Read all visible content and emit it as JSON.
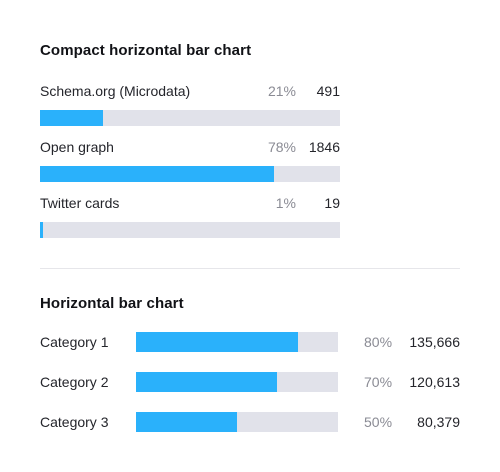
{
  "chart_data": [
    {
      "type": "bar",
      "orientation": "horizontal",
      "title": "Compact horizontal bar chart",
      "categories": [
        "Schema.org (Microdata)",
        "Open graph",
        "Twitter cards"
      ],
      "values": [
        491,
        1846,
        19
      ],
      "percents": [
        "21%",
        "78%",
        "1%"
      ],
      "value_labels": [
        "491",
        "1846",
        "19"
      ],
      "fractions": [
        0.21,
        0.78,
        0.01
      ],
      "bar_color": "#2ab1fb",
      "track_color": "#e1e2ea"
    },
    {
      "type": "bar",
      "orientation": "horizontal",
      "title": "Horizontal bar chart",
      "categories": [
        "Category 1",
        "Category 2",
        "Category 3"
      ],
      "values": [
        135666,
        120613,
        80379
      ],
      "percents": [
        "80%",
        "70%",
        "50%"
      ],
      "value_labels": [
        "135,666",
        "120,613",
        "80,379"
      ],
      "fractions": [
        0.8,
        0.7,
        0.5
      ],
      "bar_color": "#2ab1fb",
      "track_color": "#e1e2ea"
    }
  ]
}
